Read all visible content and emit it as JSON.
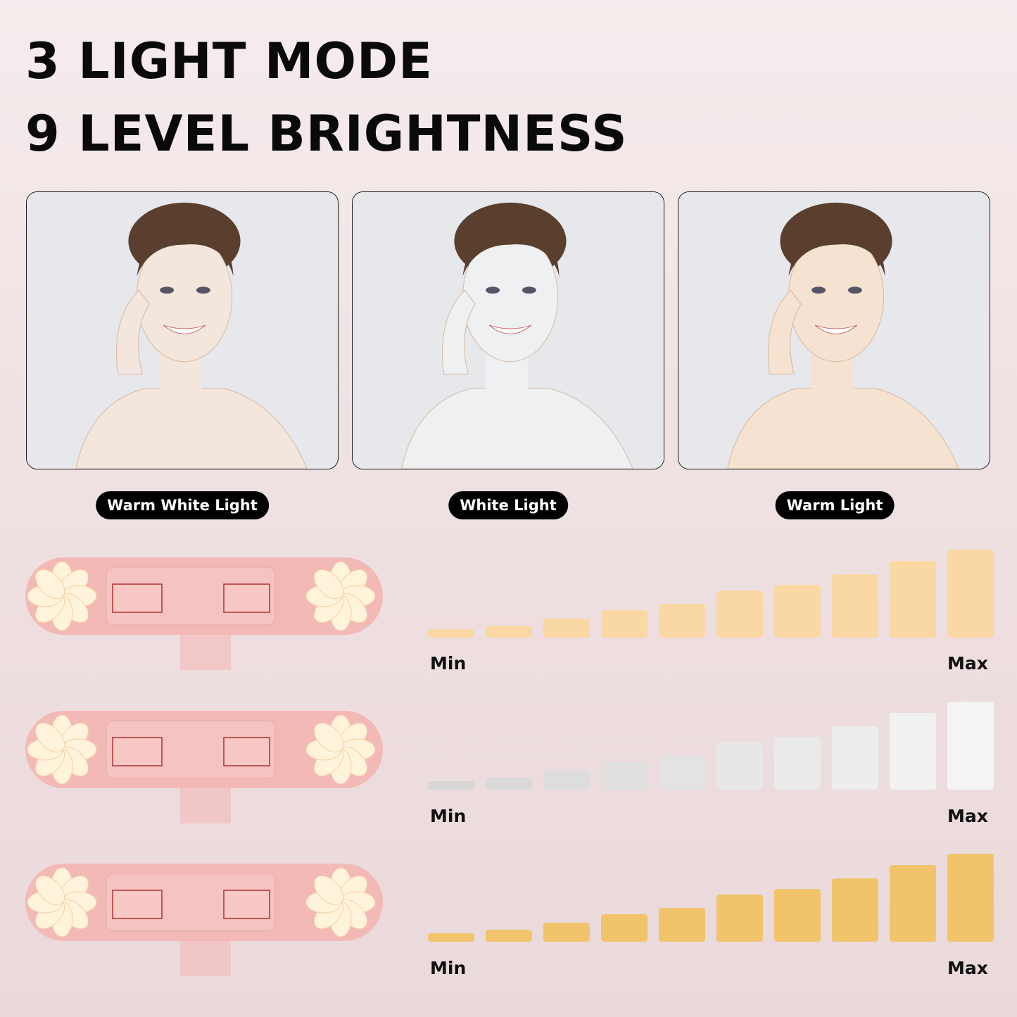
{
  "headline": {
    "line1": "3 LIGHT MODE",
    "line2": "9 LEVEL BRIGHTNESS"
  },
  "modes": [
    {
      "label": "Warm White Light",
      "tint": "#f3e6dc"
    },
    {
      "label": "White Light",
      "tint": "#eef0f2"
    },
    {
      "label": "Warm Light",
      "tint": "#f5e2d0"
    }
  ],
  "brightness_scales": [
    {
      "min_label": "Min",
      "max_label": "Max",
      "bar_color": "#f9d8a4",
      "bar_color_end": "#f9d8a4"
    },
    {
      "min_label": "Min",
      "max_label": "Max",
      "bar_color": "#d6d6d6",
      "bar_color_end": "#f4f4f4"
    },
    {
      "min_label": "Min",
      "max_label": "Max",
      "bar_color": "#f1c46c",
      "bar_color_end": "#f1c46c"
    }
  ],
  "colors": {
    "device_pink": "#f3b9b7",
    "led_glow": "#fff3dc"
  }
}
